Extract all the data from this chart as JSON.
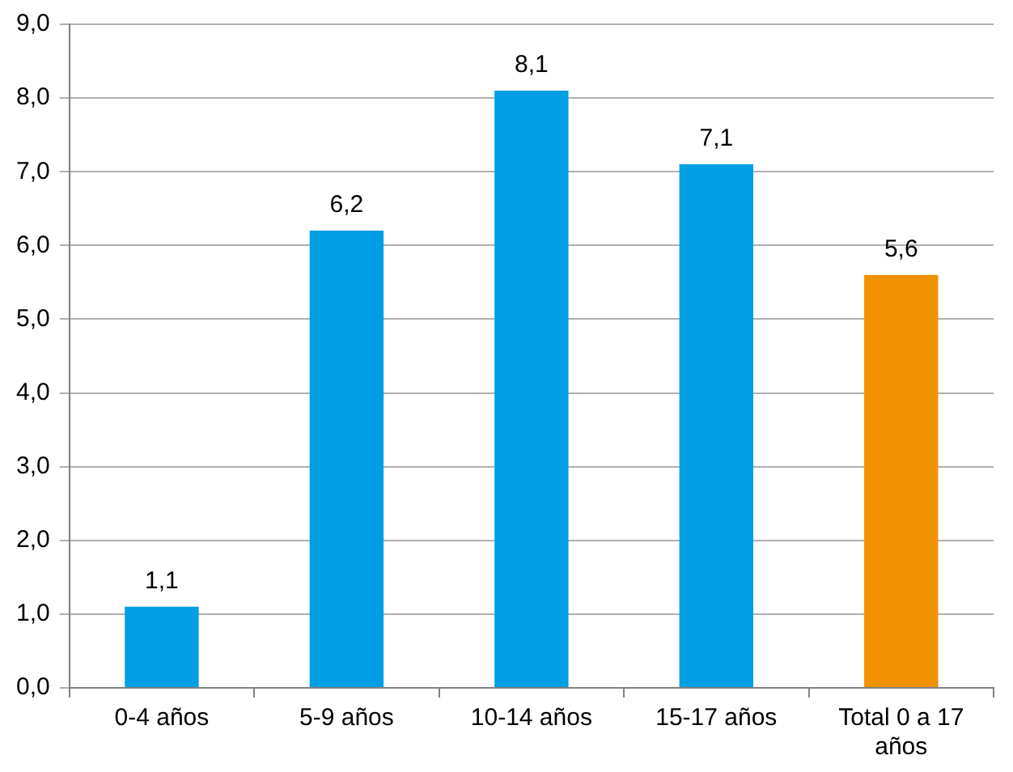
{
  "chart_data": {
    "type": "bar",
    "categories": [
      "0-4 años",
      "5-9 años",
      "10-14 años",
      "15-17 años",
      "Total 0 a 17 años"
    ],
    "values": [
      1.1,
      6.2,
      8.1,
      7.1,
      5.6
    ],
    "colors": [
      "#009fe3",
      "#009fe3",
      "#009fe3",
      "#009fe3",
      "#f39200"
    ],
    "value_labels": [
      "1,1",
      "6,2",
      "8,1",
      "7,1",
      "5,6"
    ],
    "ylim": [
      0,
      9
    ],
    "yticks": [
      {
        "value": 0,
        "label": "0,0"
      },
      {
        "value": 1,
        "label": "1,0"
      },
      {
        "value": 2,
        "label": "2,0"
      },
      {
        "value": 3,
        "label": "3,0"
      },
      {
        "value": 4,
        "label": "4,0"
      },
      {
        "value": 5,
        "label": "5,0"
      },
      {
        "value": 6,
        "label": "6,0"
      },
      {
        "value": 7,
        "label": "7,0"
      },
      {
        "value": 8,
        "label": "8,0"
      },
      {
        "value": 9,
        "label": "9,0"
      }
    ],
    "grid": "y",
    "legend": false
  }
}
